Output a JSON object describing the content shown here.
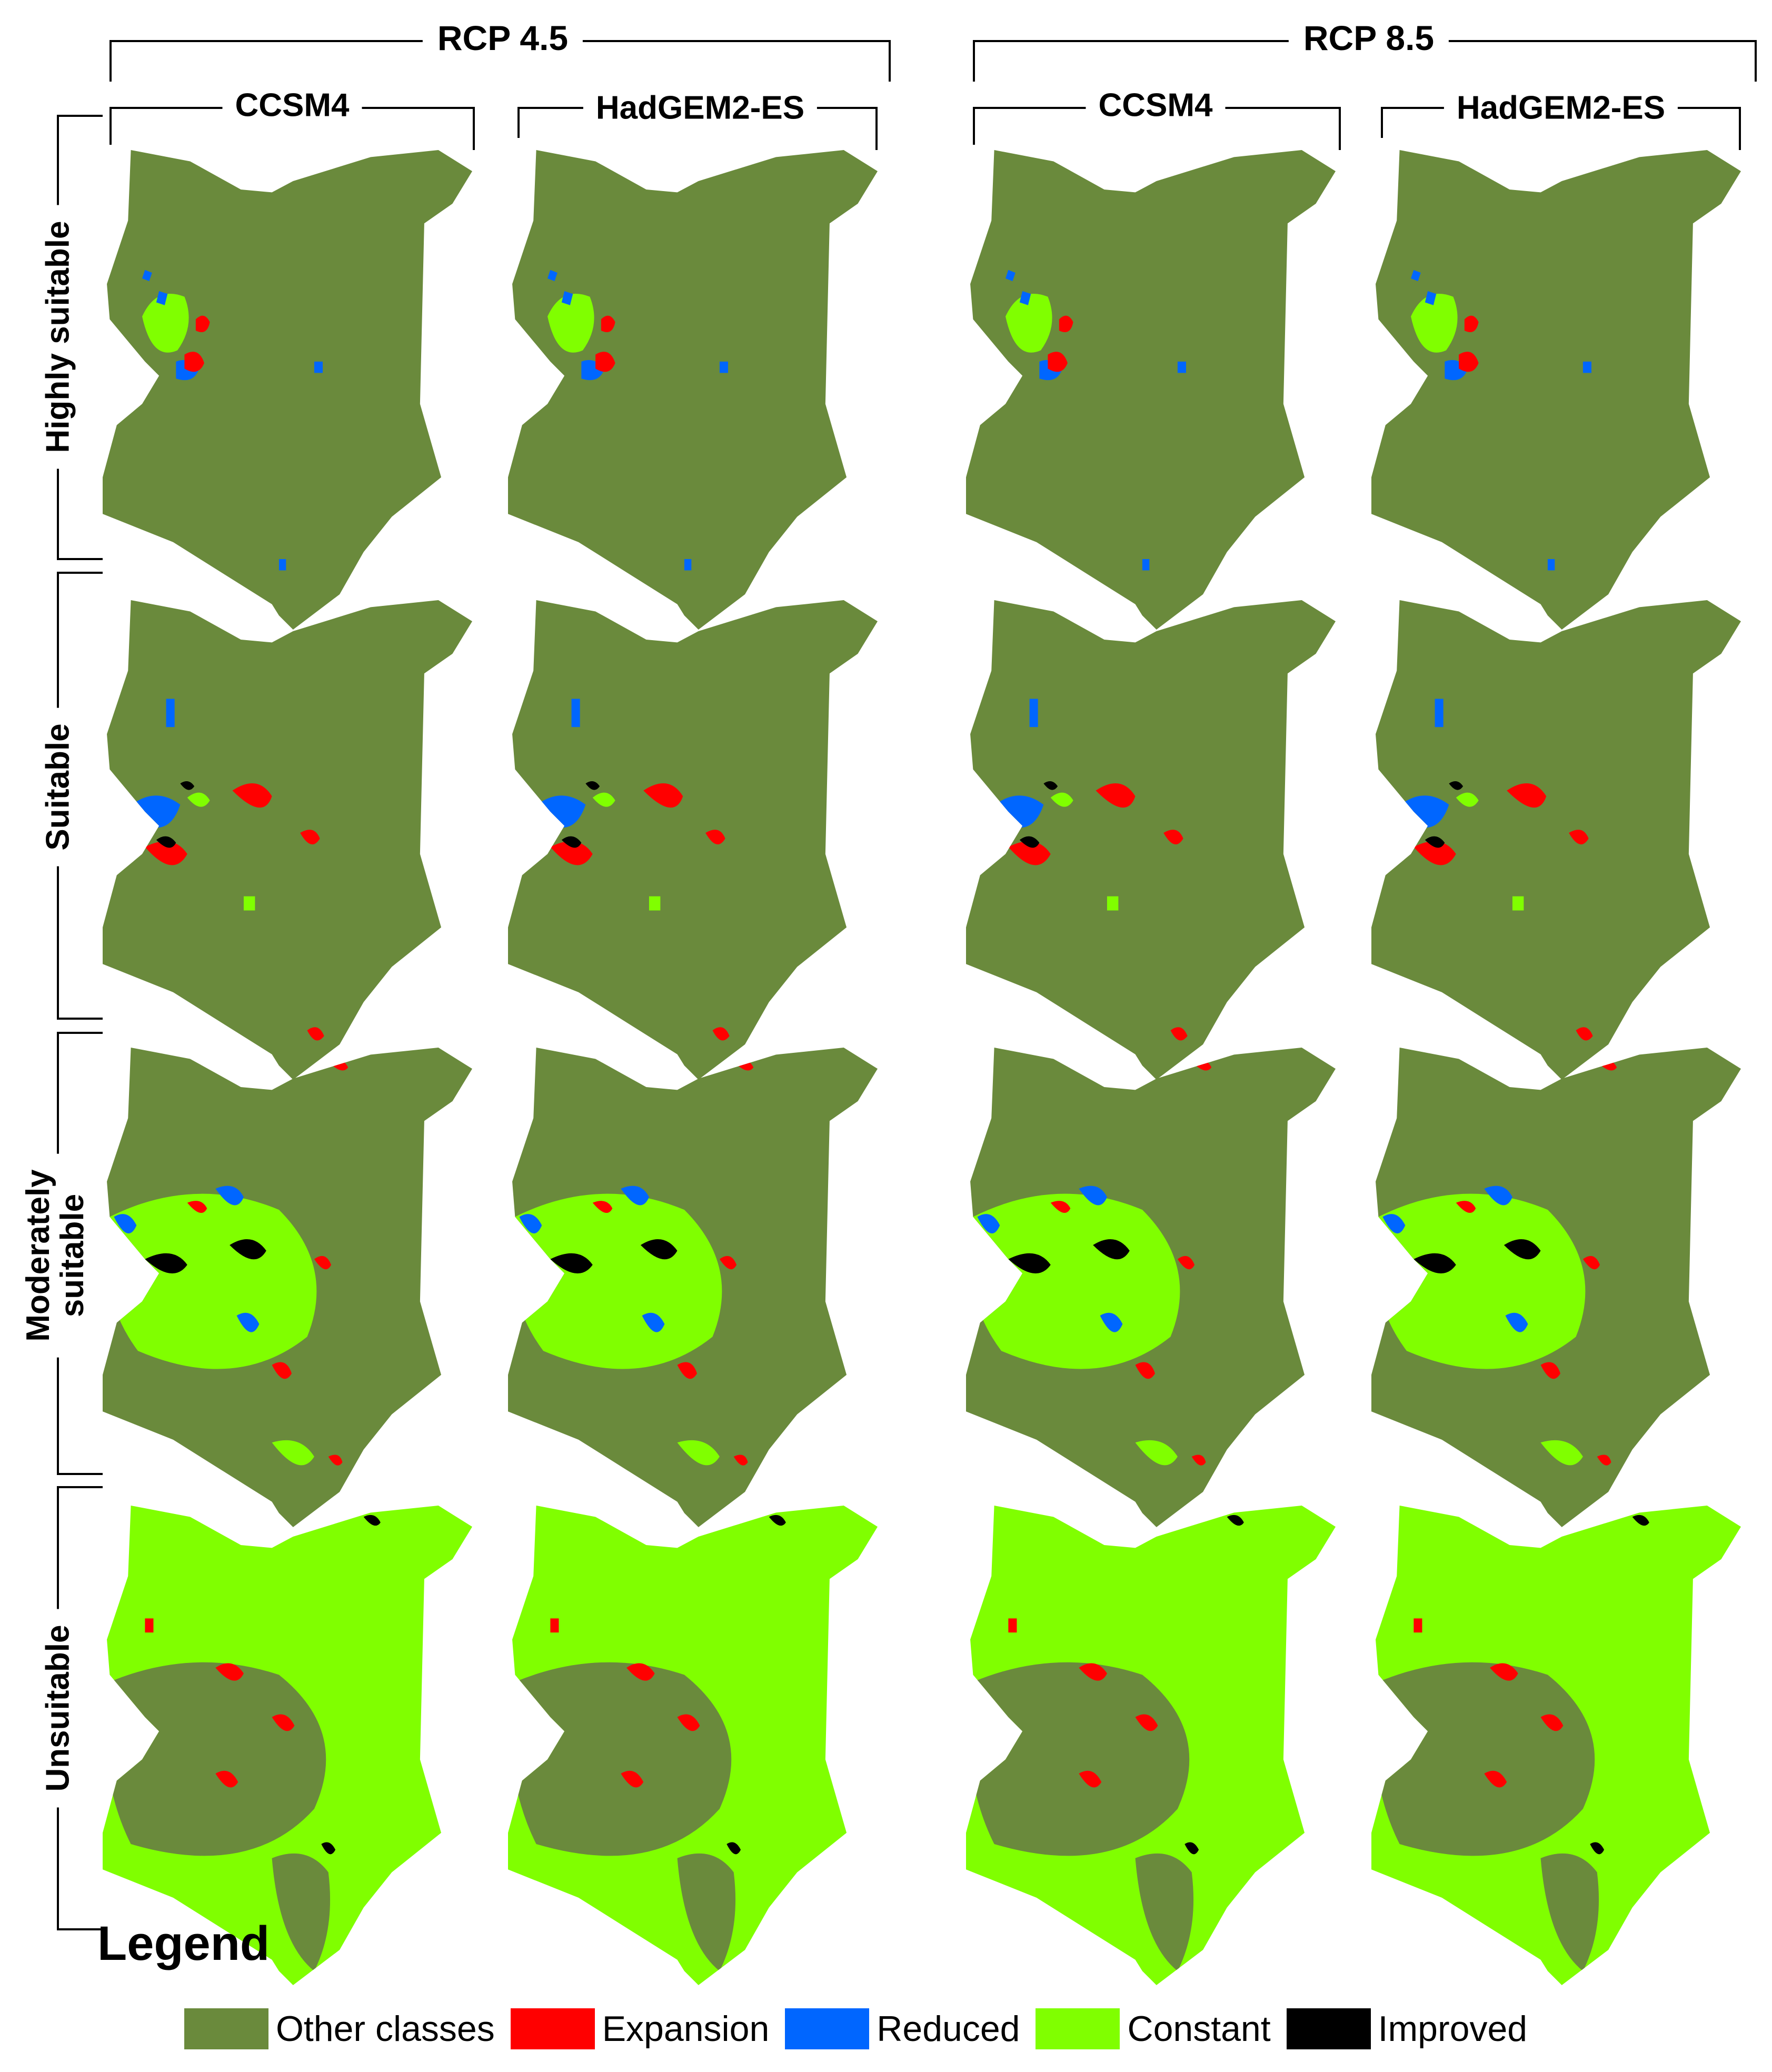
{
  "scenarios": [
    "RCP 4.5",
    "RCP 8.5"
  ],
  "models": [
    "CCSM4",
    "HadGEM2-ES",
    "CCSM4",
    "HadGEM2-ES"
  ],
  "rows": [
    {
      "id": "highly",
      "label": [
        "Highly suitable"
      ],
      "base": "other"
    },
    {
      "id": "suitable",
      "label": [
        "Suitable"
      ],
      "base": "other"
    },
    {
      "id": "moderately",
      "label": [
        "Moderately",
        "suitable"
      ],
      "base": "other"
    },
    {
      "id": "unsuitable",
      "label": [
        "Unsuitable"
      ],
      "base": "constant"
    }
  ],
  "legend": {
    "title": "Legend",
    "items": [
      {
        "key": "other",
        "label": "Other classes",
        "color": "#6a8a3c"
      },
      {
        "key": "expansion",
        "label": "Expansion",
        "color": "#ff0000"
      },
      {
        "key": "reduced",
        "label": "Reduced",
        "color": "#0066ff"
      },
      {
        "key": "constant",
        "label": "Constant",
        "color": "#80ff00"
      },
      {
        "key": "improved",
        "label": "Improved",
        "color": "#000000"
      }
    ]
  }
}
